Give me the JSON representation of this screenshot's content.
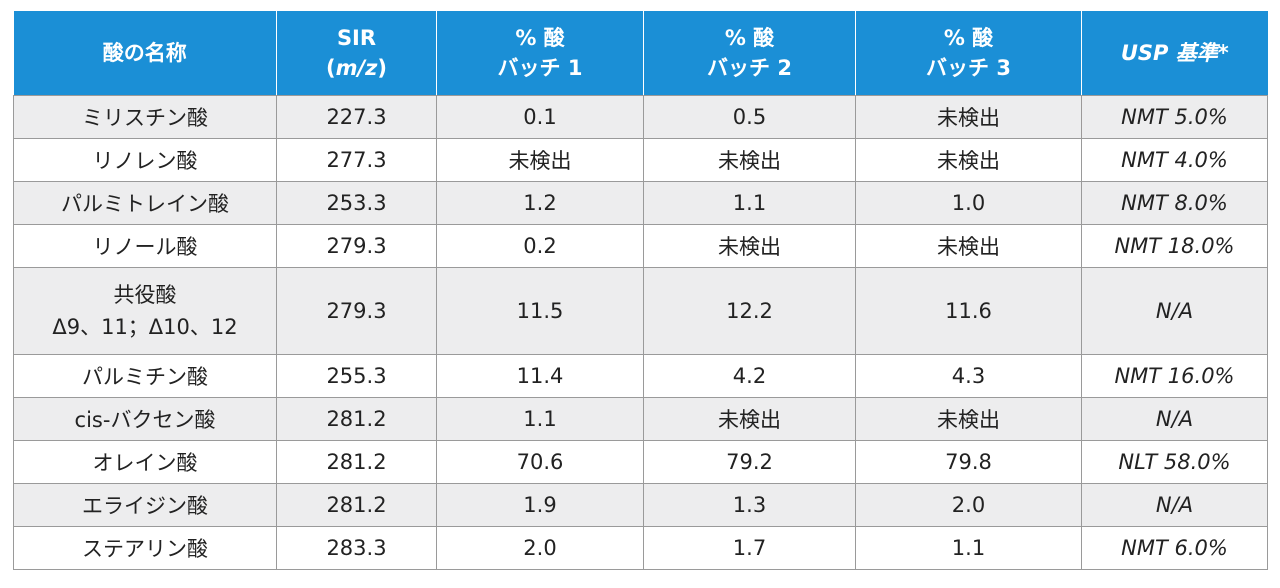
{
  "table": {
    "headers": [
      {
        "lines": [
          "酸の名称"
        ]
      },
      {
        "lines": [
          "SIR",
          "(m/z)"
        ],
        "italic_part": "m/z"
      },
      {
        "lines": [
          "% 酸",
          "バッチ 1"
        ]
      },
      {
        "lines": [
          "% 酸",
          "バッチ 2"
        ]
      },
      {
        "lines": [
          "% 酸",
          "バッチ 3"
        ]
      },
      {
        "lines": [
          "USP 基準*"
        ],
        "italic": true
      }
    ],
    "rows": [
      {
        "name": "ミリスチン酸",
        "sir": "227.3",
        "batch1": "0.1",
        "batch2": "0.5",
        "batch3": "未検出",
        "usp": "NMT 5.0%"
      },
      {
        "name": "リノレン酸",
        "sir": "277.3",
        "batch1": "未検出",
        "batch2": "未検出",
        "batch3": "未検出",
        "usp": "NMT 4.0%"
      },
      {
        "name": "パルミトレイン酸",
        "sir": "253.3",
        "batch1": "1.2",
        "batch2": "1.1",
        "batch3": "1.0",
        "usp": "NMT 8.0%"
      },
      {
        "name": "リノール酸",
        "sir": "279.3",
        "batch1": "0.2",
        "batch2": "未検出",
        "batch3": "未検出",
        "usp": "NMT 18.0%"
      },
      {
        "name_line1": "共役酸",
        "name_line2": "Δ9、11；Δ10、12",
        "sir": "279.3",
        "batch1": "11.5",
        "batch2": "12.2",
        "batch3": "11.6",
        "usp": "N/A"
      },
      {
        "name": "パルミチン酸",
        "sir": "255.3",
        "batch1": "11.4",
        "batch2": "4.2",
        "batch3": "4.3",
        "usp": "NMT 16.0%"
      },
      {
        "name": "cis-バクセン酸",
        "sir": "281.2",
        "batch1": "1.1",
        "batch2": "未検出",
        "batch3": "未検出",
        "usp": "N/A"
      },
      {
        "name": "オレイン酸",
        "sir": "281.2",
        "batch1": "70.6",
        "batch2": "79.2",
        "batch3": "79.8",
        "usp": "NLT 58.0%"
      },
      {
        "name": "エライジン酸",
        "sir": "281.2",
        "batch1": "1.9",
        "batch2": "1.3",
        "batch3": "2.0",
        "usp": "N/A"
      },
      {
        "name": "ステアリン酸",
        "sir": "283.3",
        "batch1": "2.0",
        "batch2": "1.7",
        "batch3": "1.1",
        "usp": "NMT 6.0%"
      }
    ]
  },
  "colors": {
    "header_bg": "#1b8fd6",
    "header_text": "#ffffff",
    "row_alt_bg": "#ededee",
    "border": "#9a9a9a"
  }
}
